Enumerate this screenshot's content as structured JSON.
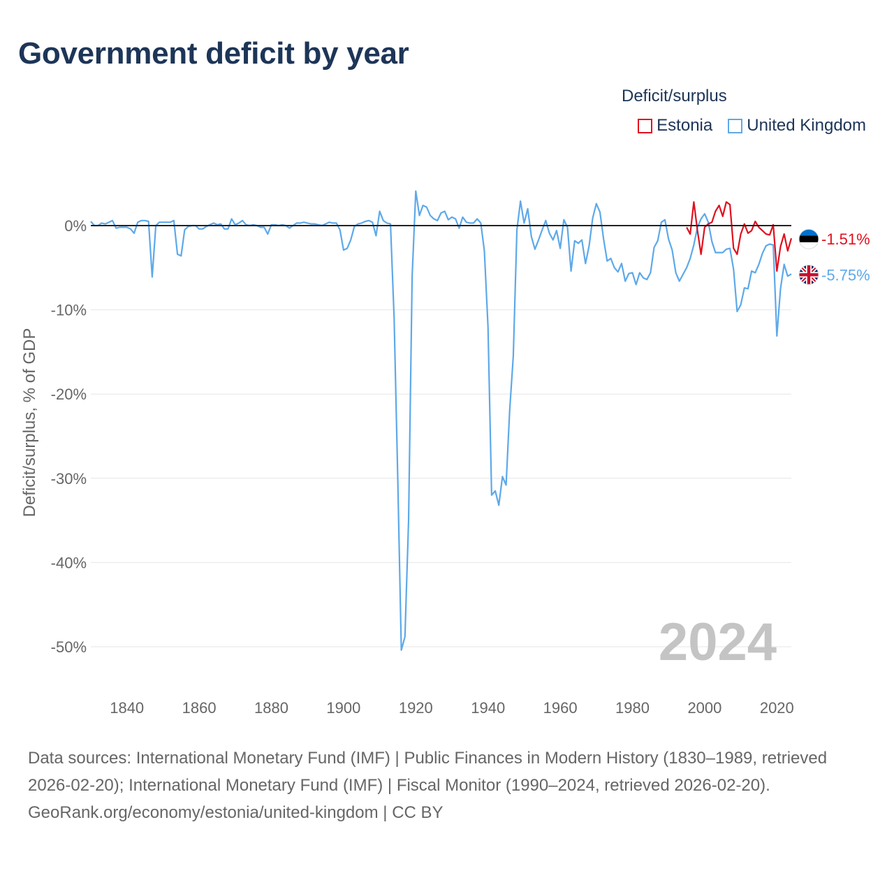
{
  "title": "Government deficit by year",
  "legend": {
    "title": "Deficit/surplus",
    "items": [
      {
        "name": "Estonia",
        "color": "#e0101e"
      },
      {
        "name": "United Kingdom",
        "color": "#5da9e9"
      }
    ]
  },
  "year_watermark": "2024",
  "footer": {
    "sources": "Data sources: International Monetary Fund (IMF) | Public Finances in Modern History (1830–1989, retrieved 2026-02-20); International Monetary Fund (IMF) | Fiscal Monitor (1990–2024, retrieved 2026-02-20).",
    "credit": "GeoRank.org/economy/estonia/united-kingdom | CC BY"
  },
  "chart_data": {
    "type": "line",
    "title": "Government deficit by year",
    "xlabel": "",
    "ylabel": "Deficit/surplus, % of GDP",
    "xlim": [
      1830,
      2024
    ],
    "ylim": [
      -55,
      5
    ],
    "x_ticks": [
      1840,
      1860,
      1880,
      1900,
      1920,
      1940,
      1960,
      1980,
      2000,
      2020
    ],
    "y_ticks": [
      0,
      -10,
      -20,
      -30,
      -40,
      -50
    ],
    "y_tick_labels": [
      "0%",
      "-10%",
      "-20%",
      "-30%",
      "-40%",
      "-50%"
    ],
    "grid": "horizontal",
    "series": [
      {
        "name": "United Kingdom",
        "color": "#5da9e9",
        "end_label": "-5.75%",
        "points": [
          [
            1830,
            0.5
          ],
          [
            1831,
            0.0
          ],
          [
            1832,
            0.0
          ],
          [
            1833,
            0.3
          ],
          [
            1834,
            0.2
          ],
          [
            1835,
            0.4
          ],
          [
            1836,
            0.6
          ],
          [
            1837,
            -0.3
          ],
          [
            1838,
            -0.2
          ],
          [
            1839,
            -0.2
          ],
          [
            1840,
            -0.2
          ],
          [
            1841,
            -0.4
          ],
          [
            1842,
            -0.9
          ],
          [
            1843,
            0.4
          ],
          [
            1844,
            0.6
          ],
          [
            1845,
            0.6
          ],
          [
            1846,
            0.5
          ],
          [
            1847,
            -6.1
          ],
          [
            1848,
            0.0
          ],
          [
            1849,
            0.4
          ],
          [
            1850,
            0.4
          ],
          [
            1851,
            0.4
          ],
          [
            1852,
            0.4
          ],
          [
            1853,
            0.6
          ],
          [
            1854,
            -3.4
          ],
          [
            1855,
            -3.6
          ],
          [
            1856,
            -0.5
          ],
          [
            1857,
            -0.1
          ],
          [
            1858,
            0.0
          ],
          [
            1859,
            0.0
          ],
          [
            1860,
            -0.4
          ],
          [
            1861,
            -0.4
          ],
          [
            1862,
            -0.1
          ],
          [
            1863,
            0.1
          ],
          [
            1864,
            0.3
          ],
          [
            1865,
            0.1
          ],
          [
            1866,
            0.2
          ],
          [
            1867,
            -0.4
          ],
          [
            1868,
            -0.4
          ],
          [
            1869,
            0.8
          ],
          [
            1870,
            0.1
          ],
          [
            1871,
            0.3
          ],
          [
            1872,
            0.6
          ],
          [
            1873,
            0.1
          ],
          [
            1874,
            0.0
          ],
          [
            1875,
            0.1
          ],
          [
            1876,
            0.0
          ],
          [
            1877,
            -0.2
          ],
          [
            1878,
            -0.2
          ],
          [
            1879,
            -1.0
          ],
          [
            1880,
            0.1
          ],
          [
            1881,
            0.1
          ],
          [
            1882,
            0.0
          ],
          [
            1883,
            0.1
          ],
          [
            1884,
            0.0
          ],
          [
            1885,
            -0.3
          ],
          [
            1886,
            0.0
          ],
          [
            1887,
            0.3
          ],
          [
            1888,
            0.3
          ],
          [
            1889,
            0.4
          ],
          [
            1890,
            0.3
          ],
          [
            1891,
            0.2
          ],
          [
            1892,
            0.2
          ],
          [
            1893,
            0.1
          ],
          [
            1894,
            0.0
          ],
          [
            1895,
            0.2
          ],
          [
            1896,
            0.4
          ],
          [
            1897,
            0.3
          ],
          [
            1898,
            0.3
          ],
          [
            1899,
            -0.5
          ],
          [
            1900,
            -2.9
          ],
          [
            1901,
            -2.7
          ],
          [
            1902,
            -1.7
          ],
          [
            1903,
            -0.1
          ],
          [
            1904,
            0.2
          ],
          [
            1905,
            0.3
          ],
          [
            1906,
            0.5
          ],
          [
            1907,
            0.6
          ],
          [
            1908,
            0.4
          ],
          [
            1909,
            -1.2
          ],
          [
            1910,
            1.7
          ],
          [
            1911,
            0.6
          ],
          [
            1912,
            0.3
          ],
          [
            1913,
            0.2
          ],
          [
            1914,
            -11.0
          ],
          [
            1915,
            -30.0
          ],
          [
            1916,
            -50.4
          ],
          [
            1917,
            -48.8
          ],
          [
            1918,
            -35.0
          ],
          [
            1919,
            -6.0
          ],
          [
            1920,
            4.1
          ],
          [
            1921,
            1.2
          ],
          [
            1922,
            2.4
          ],
          [
            1923,
            2.2
          ],
          [
            1924,
            1.2
          ],
          [
            1925,
            0.8
          ],
          [
            1926,
            0.6
          ],
          [
            1927,
            1.5
          ],
          [
            1928,
            1.7
          ],
          [
            1929,
            0.7
          ],
          [
            1930,
            1.0
          ],
          [
            1931,
            0.8
          ],
          [
            1932,
            -0.3
          ],
          [
            1933,
            1.0
          ],
          [
            1934,
            0.4
          ],
          [
            1935,
            0.3
          ],
          [
            1936,
            0.3
          ],
          [
            1937,
            0.8
          ],
          [
            1938,
            0.3
          ],
          [
            1939,
            -3.0
          ],
          [
            1940,
            -12.0
          ],
          [
            1941,
            -32.0
          ],
          [
            1942,
            -31.5
          ],
          [
            1943,
            -33.2
          ],
          [
            1944,
            -29.8
          ],
          [
            1945,
            -30.8
          ],
          [
            1946,
            -22.0
          ],
          [
            1947,
            -15.5
          ],
          [
            1948,
            -0.5
          ],
          [
            1949,
            2.9
          ],
          [
            1950,
            0.3
          ],
          [
            1951,
            2.0
          ],
          [
            1952,
            -1.3
          ],
          [
            1953,
            -2.8
          ],
          [
            1954,
            -1.7
          ],
          [
            1955,
            -0.5
          ],
          [
            1956,
            0.6
          ],
          [
            1957,
            -0.9
          ],
          [
            1958,
            -1.7
          ],
          [
            1959,
            -0.6
          ],
          [
            1960,
            -2.7
          ],
          [
            1961,
            0.7
          ],
          [
            1962,
            -0.2
          ],
          [
            1963,
            -5.4
          ],
          [
            1964,
            -1.8
          ],
          [
            1965,
            -2.1
          ],
          [
            1966,
            -1.7
          ],
          [
            1967,
            -4.5
          ],
          [
            1968,
            -2.4
          ],
          [
            1969,
            0.9
          ],
          [
            1970,
            2.6
          ],
          [
            1971,
            1.6
          ],
          [
            1972,
            -1.6
          ],
          [
            1973,
            -4.2
          ],
          [
            1974,
            -3.9
          ],
          [
            1975,
            -5.0
          ],
          [
            1976,
            -5.5
          ],
          [
            1977,
            -4.5
          ],
          [
            1978,
            -6.6
          ],
          [
            1979,
            -5.7
          ],
          [
            1980,
            -5.6
          ],
          [
            1981,
            -7.0
          ],
          [
            1982,
            -5.6
          ],
          [
            1983,
            -6.2
          ],
          [
            1984,
            -6.4
          ],
          [
            1985,
            -5.6
          ],
          [
            1986,
            -2.6
          ],
          [
            1987,
            -1.8
          ],
          [
            1988,
            0.4
          ],
          [
            1989,
            0.7
          ],
          [
            1990,
            -1.6
          ],
          [
            1991,
            -2.9
          ],
          [
            1992,
            -5.6
          ],
          [
            1993,
            -6.6
          ],
          [
            1994,
            -5.8
          ],
          [
            1995,
            -5.0
          ],
          [
            1996,
            -3.9
          ],
          [
            1997,
            -2.3
          ],
          [
            1998,
            -0.2
          ],
          [
            1999,
            0.8
          ],
          [
            2000,
            1.4
          ],
          [
            2001,
            0.4
          ],
          [
            2002,
            -1.9
          ],
          [
            2003,
            -3.2
          ],
          [
            2004,
            -3.2
          ],
          [
            2005,
            -3.2
          ],
          [
            2006,
            -2.8
          ],
          [
            2007,
            -2.7
          ],
          [
            2008,
            -5.2
          ],
          [
            2009,
            -10.2
          ],
          [
            2010,
            -9.4
          ],
          [
            2011,
            -7.4
          ],
          [
            2012,
            -7.5
          ],
          [
            2013,
            -5.4
          ],
          [
            2014,
            -5.6
          ],
          [
            2015,
            -4.6
          ],
          [
            2016,
            -3.3
          ],
          [
            2017,
            -2.4
          ],
          [
            2018,
            -2.2
          ],
          [
            2019,
            -2.3
          ],
          [
            2020,
            -13.1
          ],
          [
            2021,
            -7.5
          ],
          [
            2022,
            -4.6
          ],
          [
            2023,
            -6.0
          ],
          [
            2024,
            -5.75
          ]
        ]
      },
      {
        "name": "Estonia",
        "color": "#e0101e",
        "end_label": "-1.51%",
        "points": [
          [
            1995,
            -0.2
          ],
          [
            1996,
            -1.0
          ],
          [
            1997,
            2.8
          ],
          [
            1998,
            -0.6
          ],
          [
            1999,
            -3.4
          ],
          [
            2000,
            -0.2
          ],
          [
            2001,
            0.2
          ],
          [
            2002,
            0.4
          ],
          [
            2003,
            1.7
          ],
          [
            2004,
            2.4
          ],
          [
            2005,
            1.1
          ],
          [
            2006,
            2.8
          ],
          [
            2007,
            2.5
          ],
          [
            2008,
            -2.7
          ],
          [
            2009,
            -3.4
          ],
          [
            2010,
            -1.0
          ],
          [
            2011,
            0.2
          ],
          [
            2012,
            -0.9
          ],
          [
            2013,
            -0.6
          ],
          [
            2014,
            0.5
          ],
          [
            2015,
            -0.2
          ],
          [
            2016,
            -0.6
          ],
          [
            2017,
            -1.0
          ],
          [
            2018,
            -1.1
          ],
          [
            2019,
            0.1
          ],
          [
            2020,
            -5.4
          ],
          [
            2021,
            -2.5
          ],
          [
            2022,
            -1.0
          ],
          [
            2023,
            -3.0
          ],
          [
            2024,
            -1.51
          ]
        ]
      }
    ]
  }
}
